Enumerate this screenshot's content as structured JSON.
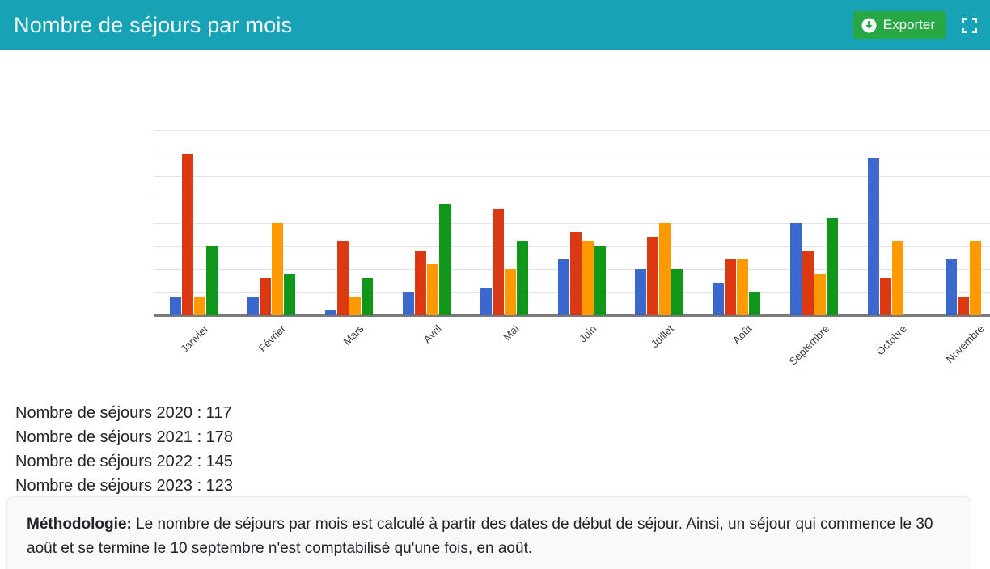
{
  "header": {
    "title": "Nombre de séjours par mois",
    "export_button": {
      "label": "Exporter",
      "color": "#28a745",
      "icon": "circle-arrow-down-icon"
    },
    "fullscreen_icon": "expand-icon",
    "background": "#18a2b6"
  },
  "chart_data": {
    "type": "bar",
    "title": "Nombre de séjours par mois",
    "categories": [
      "Janvier",
      "Février",
      "Mars",
      "Avril",
      "Mai",
      "Juin",
      "Juillet",
      "Août",
      "Septembre",
      "Octobre",
      "Novembre"
    ],
    "series": [
      {
        "name": "2020",
        "color": "#3b68cc",
        "values": [
          4,
          4,
          1,
          5,
          6,
          12,
          10,
          7,
          20,
          34,
          12
        ]
      },
      {
        "name": "2021",
        "color": "#dc3912",
        "values": [
          35,
          8,
          16,
          14,
          23,
          18,
          17,
          12,
          14,
          8,
          4
        ]
      },
      {
        "name": "2022",
        "color": "#ff9900",
        "values": [
          4,
          20,
          4,
          11,
          10,
          16,
          20,
          12,
          9,
          16,
          16
        ]
      },
      {
        "name": "2023",
        "color": "#109618",
        "values": [
          15,
          9,
          8,
          24,
          16,
          15,
          10,
          5,
          21,
          0,
          0
        ]
      }
    ],
    "xlabel": "",
    "ylabel": "",
    "ylim": [
      0,
      40
    ],
    "grid_step": 5,
    "grid": true,
    "legend": "none",
    "y_tick_labels_shown": false
  },
  "summary": {
    "lines": [
      "Nombre de séjours 2020 : 117",
      "Nombre de séjours 2021 : 178",
      "Nombre de séjours 2022 : 145",
      "Nombre de séjours 2023 : 123"
    ]
  },
  "methodology": {
    "label": "Méthodologie:",
    "text": " Le nombre de séjours par mois est calculé à partir des dates de début de séjour. Ainsi, un séjour qui commence le 30 août et se termine le 10 septembre n'est comptabilisé qu'une fois, en août."
  }
}
